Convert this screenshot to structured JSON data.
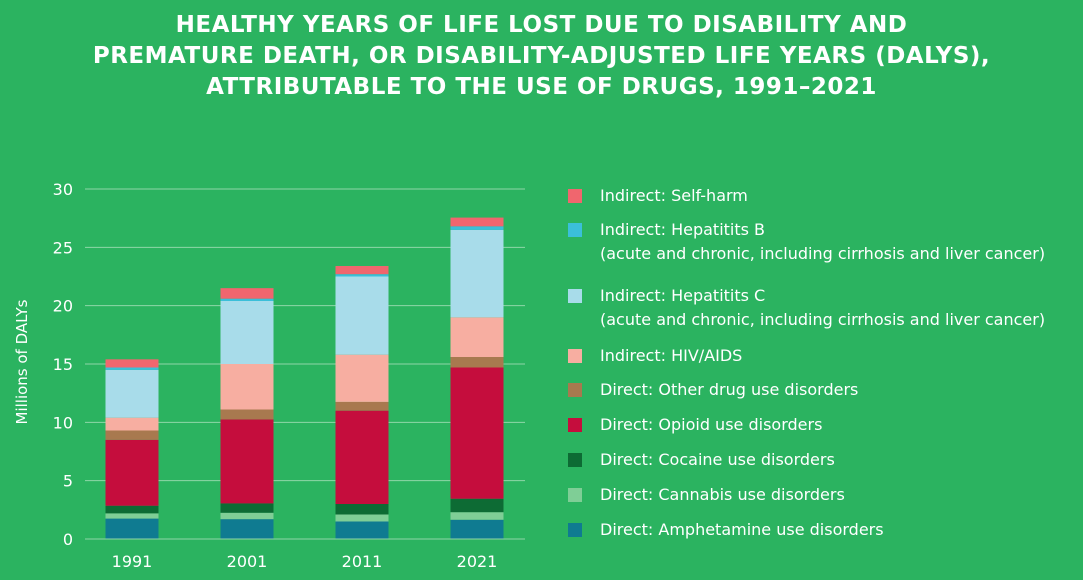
{
  "title_lines": [
    "HEALTHY YEARS OF LIFE LOST DUE TO DISABILITY AND",
    "PREMATURE DEATH, OR DISABILITY-ADJUSTED LIFE YEARS (DALYS),",
    "ATTRIBUTABLE TO THE USE OF DRUGS, 1991–2021"
  ],
  "colors": {
    "background": "#2bb360",
    "gridline": "#8fd6a8",
    "text": "#ffffff"
  },
  "chart_data": {
    "type": "bar",
    "stacked": true,
    "title": "HEALTHY YEARS OF LIFE LOST DUE TO DISABILITY AND PREMATURE DEATH, OR DISABILITY-ADJUSTED LIFE YEARS (DALYS), ATTRIBUTABLE TO THE USE OF DRUGS, 1991–2021",
    "xlabel": "",
    "ylabel": "Millions of DALYs",
    "ylim": [
      0,
      30
    ],
    "yticks": [
      0,
      5,
      10,
      15,
      20,
      25,
      30
    ],
    "grid": true,
    "legend_position": "right",
    "categories": [
      "1991",
      "2001",
      "2011",
      "2021"
    ],
    "series": [
      {
        "name": "Direct: Amphetamine use disorders",
        "color": "#0f7b91",
        "values": [
          1.75,
          1.7,
          1.5,
          1.65
        ]
      },
      {
        "name": "Direct: Cannabis use disorders",
        "color": "#7fce96",
        "values": [
          0.45,
          0.55,
          0.6,
          0.65
        ]
      },
      {
        "name": "Direct: Cocaine use disorders",
        "color": "#0d6b34",
        "values": [
          0.65,
          0.8,
          0.9,
          1.15
        ]
      },
      {
        "name": "Direct: Opioid use disorders",
        "color": "#c50d3d",
        "values": [
          5.65,
          7.2,
          8.0,
          11.25
        ]
      },
      {
        "name": "Direct: Other drug use disorders",
        "color": "#a8794f",
        "values": [
          0.8,
          0.85,
          0.75,
          0.9
        ]
      },
      {
        "name": "Indirect: HIV/AIDS",
        "color": "#f7aea1",
        "values": [
          1.1,
          3.9,
          4.05,
          3.4
        ]
      },
      {
        "name": "Indirect: Hepatitits C\n(acute and chronic, including cirrhosis and liver cancer)",
        "color": "#a8dcea",
        "values": [
          4.1,
          5.4,
          6.7,
          7.5
        ]
      },
      {
        "name": "Indirect: Hepatitits B\n(acute and chronic, including cirrhosis and liver cancer)",
        "color": "#3bbfd9",
        "values": [
          0.2,
          0.2,
          0.2,
          0.3
        ]
      },
      {
        "name": "Indirect: Self-harm",
        "color": "#f0666e",
        "values": [
          0.7,
          0.9,
          0.7,
          0.75
        ]
      }
    ]
  },
  "legend_order": [
    8,
    7,
    6,
    5,
    4,
    3,
    2,
    1,
    0
  ]
}
